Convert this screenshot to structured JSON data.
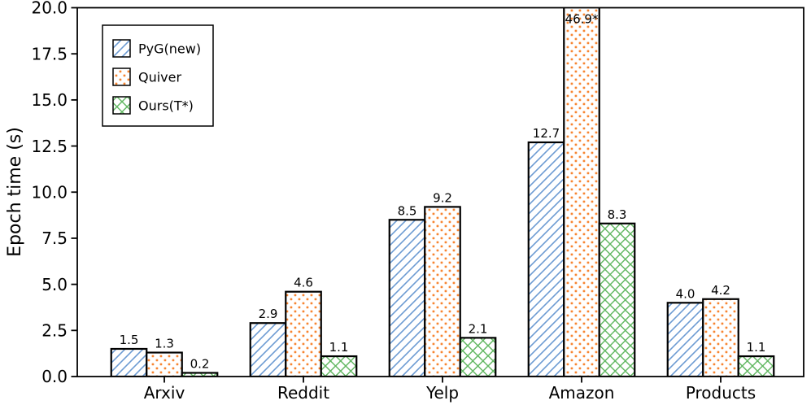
{
  "chart_data": {
    "type": "bar",
    "title": "",
    "categories": [
      "Arxiv",
      "Reddit",
      "Yelp",
      "Amazon",
      "Products"
    ],
    "series": [
      {
        "name": "PyG(new)",
        "hatch": "diagonal",
        "hatch_color": "#6c9bd2",
        "values": [
          1.5,
          2.9,
          8.5,
          12.7,
          4.0
        ],
        "labels": [
          "1.5",
          "2.9",
          "8.5",
          "12.7",
          "4.0"
        ]
      },
      {
        "name": "Quiver",
        "hatch": "dots",
        "hatch_color": "#f78531",
        "values": [
          1.3,
          4.6,
          9.2,
          46.9,
          4.2
        ],
        "labels": [
          "1.3",
          "4.6",
          "9.2",
          "46.9*",
          "4.2"
        ]
      },
      {
        "name": "Ours(T*)",
        "hatch": "cross",
        "hatch_color": "#63b863",
        "values": [
          0.2,
          1.1,
          2.1,
          8.3,
          1.1
        ],
        "labels": [
          "0.2",
          "1.1",
          "2.1",
          "8.3",
          "1.1"
        ]
      }
    ],
    "ylabel": "Epoch time (s)",
    "xlabel": "",
    "ylim": [
      0,
      20
    ],
    "yticks": [
      0,
      2.5,
      5,
      7.5,
      10,
      12.5,
      15,
      17.5,
      20
    ],
    "ytick_labels": [
      "0.0",
      "2.5",
      "5.0",
      "7.5",
      "10.0",
      "12.5",
      "15.0",
      "17.5",
      "20.0"
    ],
    "grid": false,
    "legend": {
      "position": "upper-left"
    },
    "colors": {
      "bar_fill": "#ffffff",
      "bar_edge": "#000000",
      "axis": "#000000",
      "text": "#000000"
    }
  }
}
